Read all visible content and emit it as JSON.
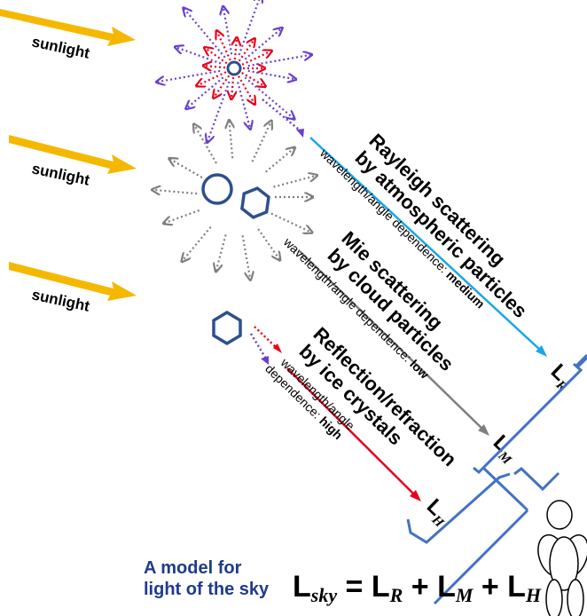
{
  "sunlight": [
    "sunlight",
    "sunlight",
    "sunlight"
  ],
  "processes": {
    "rayleigh": {
      "title_line1": "Rayleigh scattering",
      "title_line2": "by atmospheric particles",
      "dependence_prefix": "wavelength/angle dependence: ",
      "dependence_value": "medium"
    },
    "mie": {
      "title_line1": "Mie scattering",
      "title_line2": "by cloud particles",
      "dependence_prefix": "wavelength/angle dependence: ",
      "dependence_value": "low"
    },
    "reflection": {
      "title_line1": "Reflection/refraction",
      "title_line2": "by ice crystals",
      "dependence_line1": "wavelength/angle",
      "dependence_prefix": "dependence: ",
      "dependence_value": "high"
    }
  },
  "labels": {
    "LR": {
      "main": "L",
      "sub": "R"
    },
    "LM": {
      "main": "L",
      "sub": "M"
    },
    "LH": {
      "main": "L",
      "sub": "H"
    }
  },
  "model_caption": [
    "A model for",
    "light of the sky"
  ],
  "equation": {
    "L": "L",
    "sky": "sky",
    "eq": " = ",
    "plus": " + ",
    "R": "R",
    "M": "M",
    "H": "H"
  },
  "colors": {
    "sunlight_arrow": "#f5b800",
    "rayleigh_red": "#e8001c",
    "rayleigh_violet": "#6a3fd0",
    "rayleigh_line": "#1aa7e6",
    "mie_gray": "#7f7f7f",
    "particle_blue": "#2e4f8f",
    "bracket_blue": "#4472c4",
    "reflection_red": "#e8001c",
    "model_text": "#1f3b8a"
  },
  "icons": [
    "sunlight-arrow",
    "atmospheric-particle",
    "cloud-droplet",
    "hexagon-crystal",
    "observer-figure",
    "bracket"
  ]
}
